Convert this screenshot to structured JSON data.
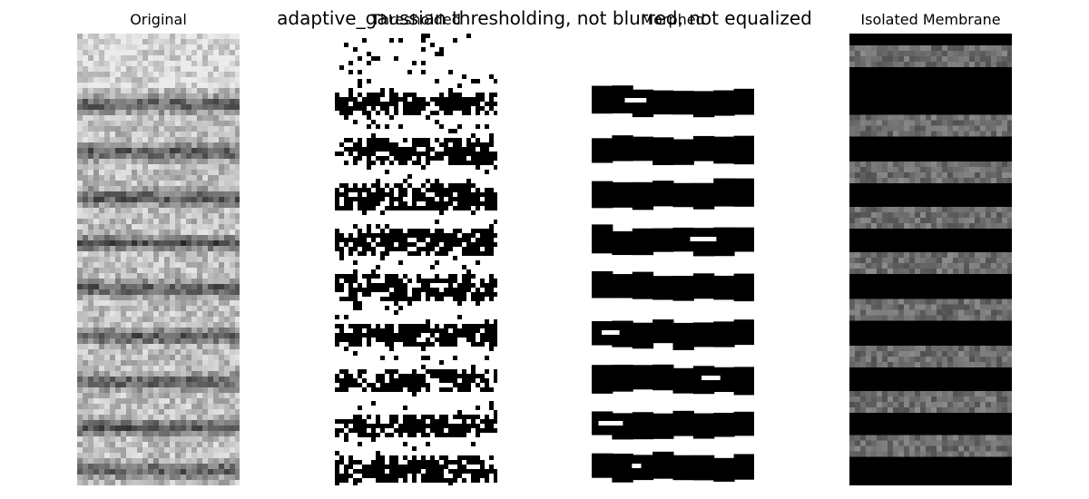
{
  "figure": {
    "suptitle": "adaptive_gaussian thresholding, not blurred, not equalized",
    "panels": [
      {
        "title": "Original",
        "style": "grayscale-noise",
        "bands": 9
      },
      {
        "title": "Thresholded",
        "style": "binary-speckle",
        "bands": 9
      },
      {
        "title": "Morphed",
        "style": "binary-clean",
        "bands": 9
      },
      {
        "title": "Isolated Membrane",
        "style": "masked-gray",
        "bands": 9
      }
    ]
  },
  "colors": {
    "background": "#ffffff",
    "black": "#000000",
    "white": "#ffffff"
  }
}
